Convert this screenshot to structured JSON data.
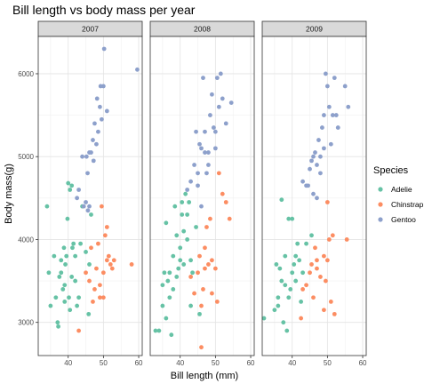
{
  "chart_data": {
    "type": "scatter",
    "title": "Bill length vs body mass per year",
    "xlabel": "Bill length (mm)",
    "ylabel": "Body mass(g)",
    "xlim": [
      31.5,
      61
    ],
    "ylim": [
      2600,
      6450
    ],
    "x_ticks": [
      "40",
      "50",
      "60"
    ],
    "y_ticks": [
      "3000",
      "4000",
      "5000",
      "6000"
    ],
    "grid": true,
    "legend": {
      "title": "Species",
      "placement": "right"
    },
    "series": [
      {
        "name": "Adelie",
        "color": "#66C2A5"
      },
      {
        "name": "Chinstrap",
        "color": "#FC8D62"
      },
      {
        "name": "Gentoo",
        "color": "#8DA0CB"
      }
    ],
    "panels": [
      {
        "label": "2007",
        "points": {
          "Adelie": [
            [
              34,
              4400
            ],
            [
              34.5,
              3600
            ],
            [
              35,
              3200
            ],
            [
              36,
              3800
            ],
            [
              36.5,
              3300
            ],
            [
              37,
              3000
            ],
            [
              37.2,
              2950
            ],
            [
              37.5,
              3550
            ],
            [
              38,
              3750
            ],
            [
              38.5,
              3400
            ],
            [
              38.8,
              3900
            ],
            [
              39,
              3450
            ],
            [
              39.2,
              3700
            ],
            [
              39.5,
              3800
            ],
            [
              39.8,
              4250
            ],
            [
              40,
              4680
            ],
            [
              40.2,
              3300
            ],
            [
              40.5,
              4600
            ],
            [
              41,
              4650
            ],
            [
              41.2,
              3900
            ],
            [
              41.5,
              3950
            ],
            [
              42,
              3500
            ],
            [
              42.5,
              3200
            ],
            [
              43,
              3300
            ],
            [
              43.5,
              3950
            ],
            [
              44,
              4400
            ],
            [
              45,
              3850
            ],
            [
              45.8,
              3100
            ],
            [
              46,
              3700
            ],
            [
              46.5,
              4300
            ],
            [
              41,
              3550
            ],
            [
              40.5,
              3150
            ],
            [
              42,
              3800
            ],
            [
              39,
              3250
            ],
            [
              38,
              3600
            ]
          ],
          "Chinstrap": [
            [
              43,
              2900
            ],
            [
              45,
              3600
            ],
            [
              46,
              3500
            ],
            [
              46.5,
              3900
            ],
            [
              47,
              3250
            ],
            [
              47.5,
              3400
            ],
            [
              48,
              3650
            ],
            [
              48.5,
              3950
            ],
            [
              49,
              3300
            ],
            [
              49.5,
              4400
            ],
            [
              50,
              3600
            ],
            [
              50.5,
              4050
            ],
            [
              51,
              3750
            ],
            [
              51.5,
              3800
            ],
            [
              52,
              3700
            ],
            [
              52.5,
              3650
            ],
            [
              53,
              3750
            ],
            [
              58,
              3700
            ],
            [
              50,
              3300
            ],
            [
              51,
              4150
            ],
            [
              49,
              3450
            ]
          ],
          "Gentoo": [
            [
              42.5,
              4500
            ],
            [
              43,
              4600
            ],
            [
              44,
              5000
            ],
            [
              45,
              4450
            ],
            [
              45.5,
              4800
            ],
            [
              46,
              5050
            ],
            [
              46.5,
              5050
            ],
            [
              47,
              5200
            ],
            [
              47.5,
              5400
            ],
            [
              48,
              5150
            ],
            [
              48.5,
              5300
            ],
            [
              49,
              5600
            ],
            [
              49.5,
              5450
            ],
            [
              50,
              5850
            ],
            [
              50.2,
              6300
            ],
            [
              51,
              5550
            ],
            [
              47.2,
              4950
            ],
            [
              46,
              4400
            ],
            [
              45.2,
              5000
            ],
            [
              48.2,
              5700
            ],
            [
              49.2,
              5850
            ],
            [
              59.6,
              6050
            ],
            [
              44.4,
              4400
            ],
            [
              45.6,
              4350
            ]
          ]
        }
      },
      {
        "label": "2008",
        "points": {
          "Adelie": [
            [
              33,
              2900
            ],
            [
              34,
              2900
            ],
            [
              35,
              3200
            ],
            [
              35.5,
              3600
            ],
            [
              36,
              4200
            ],
            [
              36.5,
              3500
            ],
            [
              37,
              3300
            ],
            [
              37.5,
              2850
            ],
            [
              38,
              3400
            ],
            [
              38.5,
              4400
            ],
            [
              39,
              4050
            ],
            [
              39.5,
              3650
            ],
            [
              40,
              3750
            ],
            [
              40.5,
              4300
            ],
            [
              41,
              4100
            ],
            [
              41.5,
              4550
            ],
            [
              42,
              4300
            ],
            [
              42.5,
              4450
            ],
            [
              43,
              3750
            ],
            [
              43.5,
              3600
            ],
            [
              44.5,
              4150
            ],
            [
              45.5,
              3100
            ],
            [
              39,
              3550
            ],
            [
              37,
              3600
            ],
            [
              36,
              3050
            ],
            [
              35,
              3450
            ],
            [
              38,
              3800
            ],
            [
              40,
              3900
            ],
            [
              41,
              3700
            ],
            [
              42,
              4000
            ],
            [
              43,
              3200
            ],
            [
              40.5,
              4450
            ]
          ],
          "Chinstrap": [
            [
              43,
              3550
            ],
            [
              44,
              3350
            ],
            [
              45,
              3600
            ],
            [
              45.5,
              3800
            ],
            [
              46,
              3200
            ],
            [
              46.5,
              3400
            ],
            [
              47,
              3900
            ],
            [
              47.5,
              4150
            ],
            [
              48,
              3700
            ],
            [
              48.5,
              4250
            ],
            [
              49,
              3750
            ],
            [
              50,
              3650
            ],
            [
              50.5,
              3250
            ],
            [
              51,
              4800
            ],
            [
              52,
              4550
            ],
            [
              53,
              4450
            ],
            [
              54,
              4250
            ],
            [
              46,
              2700
            ],
            [
              47,
              3650
            ],
            [
              49,
              3350
            ]
          ],
          "Gentoo": [
            [
              42,
              4600
            ],
            [
              43,
              4700
            ],
            [
              44,
              4900
            ],
            [
              45,
              4800
            ],
            [
              45.5,
              5150
            ],
            [
              46,
              4400
            ],
            [
              46.5,
              5950
            ],
            [
              47,
              5300
            ],
            [
              47.5,
              4800
            ],
            [
              48,
              5050
            ],
            [
              48.5,
              5500
            ],
            [
              49,
              5750
            ],
            [
              49.5,
              5350
            ],
            [
              50,
              5100
            ],
            [
              50.5,
              5950
            ],
            [
              51,
              5600
            ],
            [
              51.5,
              6000
            ],
            [
              52,
              5700
            ],
            [
              53,
              5400
            ],
            [
              54.5,
              5650
            ],
            [
              44.5,
              5300
            ],
            [
              46,
              5100
            ],
            [
              45,
              4650
            ],
            [
              48,
              4900
            ],
            [
              50,
              5300
            ],
            [
              47,
              5050
            ]
          ]
        }
      },
      {
        "label": "2009",
        "points": {
          "Adelie": [
            [
              32,
              3050
            ],
            [
              35,
              3150
            ],
            [
              35.5,
              3700
            ],
            [
              36,
              3300
            ],
            [
              36.5,
              3650
            ],
            [
              37,
              3500
            ],
            [
              37.5,
              3000
            ],
            [
              38,
              3450
            ],
            [
              38.5,
              2900
            ],
            [
              39,
              4250
            ],
            [
              39.5,
              3400
            ],
            [
              40,
              4250
            ],
            [
              40.5,
              3700
            ],
            [
              41,
              3800
            ],
            [
              41.5,
              3950
            ],
            [
              42,
              3750
            ],
            [
              42.5,
              3250
            ],
            [
              43,
              3600
            ],
            [
              44,
              3950
            ],
            [
              45.5,
              4050
            ],
            [
              37,
              4480
            ],
            [
              36,
              3200
            ],
            [
              38,
              3800
            ],
            [
              39,
              3300
            ],
            [
              40,
              3600
            ],
            [
              41,
              3500
            ]
          ],
          "Chinstrap": [
            [
              42.5,
              3050
            ],
            [
              43,
              3400
            ],
            [
              44,
              3450
            ],
            [
              45,
              3600
            ],
            [
              45.5,
              3700
            ],
            [
              46,
              3300
            ],
            [
              46.5,
              3900
            ],
            [
              47,
              3650
            ],
            [
              48,
              3550
            ],
            [
              49,
              3800
            ],
            [
              49.5,
              3500
            ],
            [
              50,
              3750
            ],
            [
              50.5,
              4000
            ],
            [
              51,
              3250
            ],
            [
              51.5,
              4050
            ],
            [
              52,
              3100
            ],
            [
              55.5,
              4000
            ],
            [
              50,
              4450
            ],
            [
              49,
              3150
            ],
            [
              47,
              3750
            ]
          ],
          "Gentoo": [
            [
              43,
              4700
            ],
            [
              44,
              4650
            ],
            [
              45,
              4850
            ],
            [
              45.5,
              4950
            ],
            [
              46,
              4550
            ],
            [
              46.5,
              5050
            ],
            [
              47,
              4500
            ],
            [
              47.5,
              5200
            ],
            [
              48,
              4800
            ],
            [
              48.5,
              5350
            ],
            [
              49,
              5500
            ],
            [
              49.5,
              6000
            ],
            [
              50,
              5850
            ],
            [
              50.5,
              5600
            ],
            [
              51,
              5150
            ],
            [
              51.5,
              5500
            ],
            [
              52,
              5950
            ],
            [
              52.5,
              5500
            ],
            [
              53,
              5350
            ],
            [
              55,
              5850
            ],
            [
              55.9,
              5600
            ],
            [
              44.5,
              4650
            ],
            [
              46,
              5000
            ],
            [
              47,
              4900
            ],
            [
              48,
              5000
            ],
            [
              49,
              5100
            ]
          ]
        }
      }
    ]
  }
}
